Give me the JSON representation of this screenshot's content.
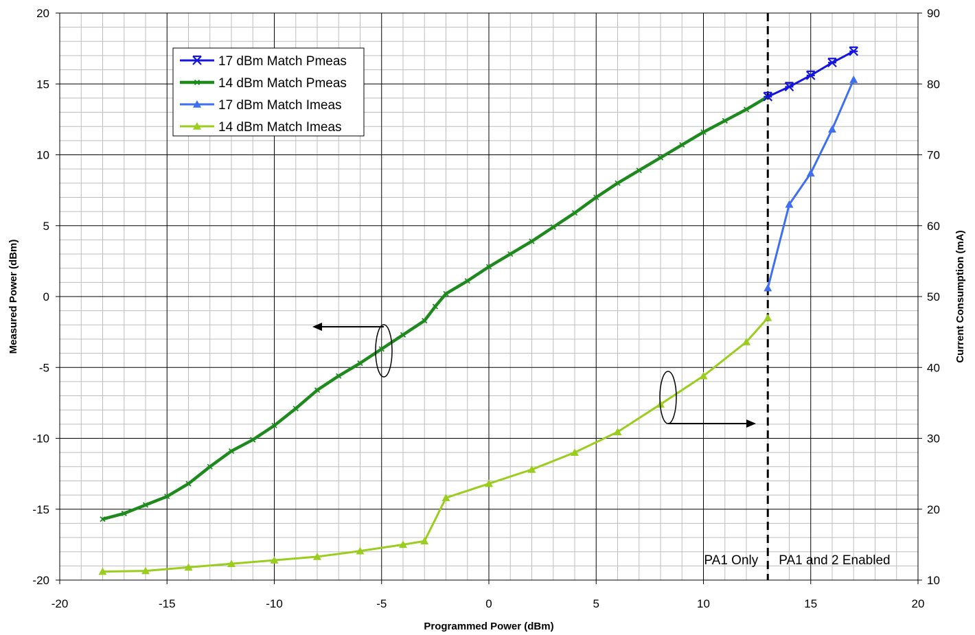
{
  "chart_data": {
    "type": "line",
    "xlabel": "Programmed Power (dBm)",
    "ylabel": "Measured Power (dBm)",
    "y2label": "Current Consumption (mA)",
    "xlim": [
      -20,
      20
    ],
    "ylim": [
      -20,
      20
    ],
    "y2lim": [
      10,
      90
    ],
    "x_ticks": [
      -20,
      -15,
      -10,
      -5,
      0,
      5,
      10,
      15,
      20
    ],
    "y_ticks": [
      -20,
      -15,
      -10,
      -5,
      0,
      5,
      10,
      15,
      20
    ],
    "y2_ticks": [
      10,
      20,
      30,
      40,
      50,
      60,
      70,
      80,
      90
    ],
    "grid": true,
    "legend_position": "top-left",
    "series": [
      {
        "name": "17 dBm Match Pmeas",
        "axis": "left",
        "color": "#1515e0",
        "marker": "star",
        "x": [
          13,
          14,
          15,
          16,
          17
        ],
        "y": [
          14.1,
          14.8,
          15.6,
          16.5,
          17.3
        ]
      },
      {
        "name": "14 dBm Match Pmeas",
        "axis": "left",
        "color": "#1e8a1e",
        "marker": "tick",
        "x": [
          -18,
          -17,
          -16,
          -15,
          -14,
          -13,
          -12,
          -11,
          -10,
          -9,
          -8,
          -7,
          -6,
          -5,
          -4,
          -3,
          -2.5,
          -2,
          -1,
          0,
          1,
          2,
          3,
          4,
          5,
          6,
          7,
          8,
          9,
          10,
          11,
          12,
          13
        ],
        "y": [
          -15.7,
          -15.3,
          -14.7,
          -14.1,
          -13.2,
          -12.0,
          -10.9,
          -10.1,
          -9.1,
          -7.9,
          -6.6,
          -5.6,
          -4.7,
          -3.7,
          -2.7,
          -1.7,
          -0.7,
          0.2,
          1.1,
          2.1,
          3.0,
          3.9,
          4.9,
          5.9,
          7.0,
          8.0,
          8.9,
          9.8,
          10.7,
          11.6,
          12.4,
          13.2,
          14.1
        ]
      },
      {
        "name": "17 dBm Match Imeas",
        "axis": "right",
        "color": "#3d6ff0",
        "marker": "triangle",
        "x": [
          13,
          14,
          15,
          16,
          17
        ],
        "y": [
          51.2,
          63.0,
          67.4,
          73.6,
          80.6
        ]
      },
      {
        "name": "14 dBm Match Imeas",
        "axis": "right",
        "color": "#9acd1e",
        "marker": "triangle",
        "x": [
          -18,
          -16,
          -14,
          -12,
          -10,
          -8,
          -6,
          -4,
          -3,
          -2,
          0,
          2,
          4,
          6,
          8,
          10,
          12,
          13
        ],
        "y": [
          11.2,
          11.3,
          11.8,
          12.3,
          12.8,
          13.3,
          14.1,
          15.0,
          15.5,
          21.6,
          23.6,
          25.6,
          28.0,
          30.9,
          34.8,
          38.8,
          43.6,
          47.0
        ]
      }
    ],
    "annotations": {
      "divider_x": 13,
      "left_region_label": "PA1 Only",
      "right_region_label": "PA1 and 2 Enabled"
    }
  }
}
